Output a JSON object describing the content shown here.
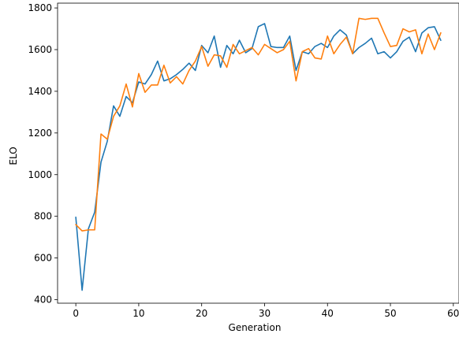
{
  "chart_data": {
    "type": "line",
    "title": "",
    "xlabel": "Generation",
    "ylabel": "ELO",
    "xlim": [
      -2.9,
      60.9
    ],
    "ylim": [
      383,
      1823
    ],
    "xticks": [
      0,
      10,
      20,
      30,
      40,
      50,
      60
    ],
    "yticks": [
      400,
      600,
      800,
      1000,
      1200,
      1400,
      1600,
      1800
    ],
    "grid": false,
    "legend": "none",
    "series": [
      {
        "color": "#1f77b4",
        "x": [
          0,
          1,
          2,
          3,
          4,
          5,
          6,
          7,
          8,
          9,
          10,
          11,
          12,
          13,
          14,
          15,
          16,
          17,
          18,
          19,
          20,
          21,
          22,
          23,
          24,
          25,
          26,
          27,
          28,
          29,
          30,
          31,
          32,
          33,
          34,
          35,
          36,
          37,
          38,
          39,
          40,
          41,
          42,
          43,
          44,
          45,
          46,
          47,
          48,
          49,
          50,
          51,
          52,
          53,
          54,
          55,
          56,
          57,
          58
        ],
        "values": [
          795,
          445,
          740,
          820,
          1060,
          1160,
          1330,
          1280,
          1375,
          1345,
          1445,
          1435,
          1480,
          1545,
          1450,
          1460,
          1480,
          1505,
          1535,
          1500,
          1620,
          1585,
          1665,
          1515,
          1620,
          1580,
          1645,
          1585,
          1605,
          1710,
          1725,
          1615,
          1610,
          1610,
          1665,
          1500,
          1590,
          1580,
          1615,
          1630,
          1610,
          1665,
          1695,
          1670,
          1580,
          1610,
          1630,
          1655,
          1580,
          1590,
          1560,
          1590,
          1640,
          1660,
          1590,
          1680,
          1705,
          1710,
          1645
        ]
      },
      {
        "color": "#ff7f0e",
        "x": [
          0,
          1,
          2,
          3,
          4,
          5,
          6,
          7,
          8,
          9,
          10,
          11,
          12,
          13,
          14,
          15,
          16,
          17,
          18,
          19,
          20,
          21,
          22,
          23,
          24,
          25,
          26,
          27,
          28,
          29,
          30,
          31,
          32,
          33,
          34,
          35,
          36,
          37,
          38,
          39,
          40,
          41,
          42,
          43,
          44,
          45,
          46,
          47,
          48,
          49,
          50,
          51,
          52,
          53,
          54,
          55,
          56,
          57,
          58
        ],
        "values": [
          760,
          730,
          735,
          735,
          1195,
          1170,
          1280,
          1330,
          1435,
          1325,
          1485,
          1395,
          1430,
          1430,
          1525,
          1440,
          1470,
          1435,
          1500,
          1545,
          1615,
          1520,
          1575,
          1570,
          1515,
          1625,
          1580,
          1595,
          1610,
          1575,
          1625,
          1605,
          1585,
          1600,
          1640,
          1450,
          1590,
          1605,
          1560,
          1555,
          1665,
          1580,
          1625,
          1660,
          1580,
          1750,
          1745,
          1750,
          1750,
          1680,
          1615,
          1620,
          1700,
          1685,
          1695,
          1580,
          1675,
          1600,
          1680
        ]
      }
    ]
  }
}
